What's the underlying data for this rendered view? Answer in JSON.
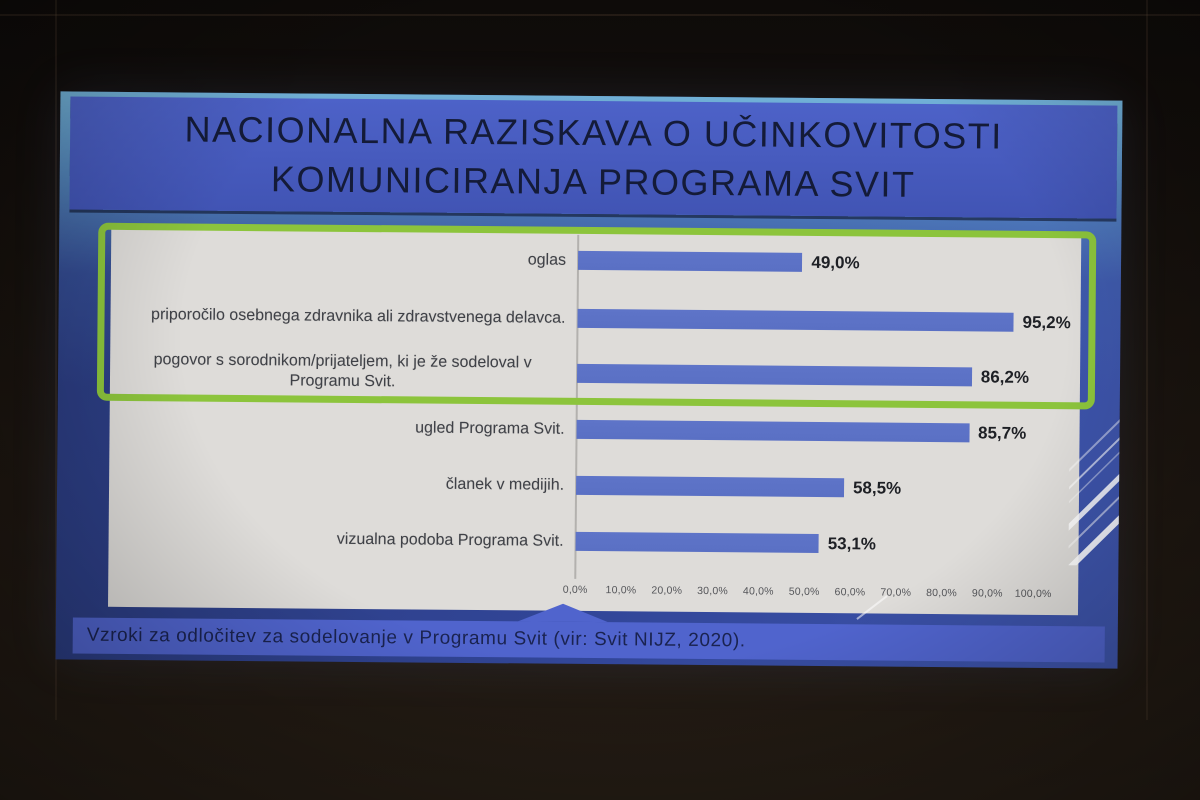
{
  "slide": {
    "title": {
      "line1": "NACIONALNA RAZISKAVA O UČINKOVITOSTI",
      "line2": "KOMUNICIRANJA PROGRAMA SVIT"
    },
    "caption": "Vzroki za odločitev za sodelovanje v Programu Svit (vir: Svit NIJZ, 2020)."
  },
  "chart_data": {
    "type": "bar",
    "orientation": "horizontal",
    "title": "",
    "xlabel": "",
    "ylabel": "",
    "categories": [
      "priporočilo osebnega zdravnika ali zdravstvenega delavca.",
      "pogovor s sorodnikom/prijateljem, ki je že sodeloval v Programu Svit.",
      "ugled Programa Svit.",
      "članek v medijih.",
      "vizualna podoba Programa Svit.",
      "oglas"
    ],
    "values": [
      95.2,
      86.2,
      85.7,
      58.5,
      53.1,
      49.0
    ],
    "value_labels": [
      "95,2%",
      "86,2%",
      "85,7%",
      "58,5%",
      "53,1%",
      "49,0%"
    ],
    "x_ticks": [
      "0,0%",
      "10,0%",
      "20,0%",
      "30,0%",
      "40,0%",
      "50,0%",
      "60,0%",
      "70,0%",
      "80,0%",
      "90,0%",
      "100,0%"
    ],
    "xlim": [
      0,
      100
    ],
    "grid": false,
    "legend": "none",
    "bar_color": "#5e74c8",
    "highlight": {
      "rows": [
        0,
        1,
        2
      ],
      "box_color": "#8cc43c"
    }
  },
  "colors": {
    "title_block_bg": "#4a5ec2",
    "title_text": "#141b38",
    "chart_panel_bg": "#dedcd9",
    "caption_bar_bg": "#5064cd",
    "caption_text": "#1a2350",
    "slide_bg_top": "#74b6da",
    "slide_bg_bottom": "#2a3b7e"
  }
}
